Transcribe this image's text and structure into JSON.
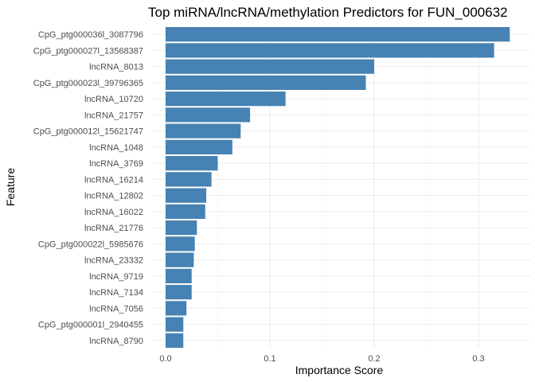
{
  "chart_data": {
    "type": "bar",
    "orientation": "horizontal",
    "title": "Top miRNA/lncRNA/methylation Predictors for FUN_000632",
    "xlabel": "Importance Score",
    "ylabel": "Feature",
    "xlim": [
      0,
      0.34
    ],
    "xticks": [
      0.0,
      0.1,
      0.2,
      0.3
    ],
    "xtick_labels": [
      "0.0",
      "0.1",
      "0.2",
      "0.3"
    ],
    "grid": true,
    "legend": "none",
    "bar_color": "#4682b4",
    "categories": [
      "CpG_ptg000036l_3087796",
      "CpG_ptg000027l_13568387",
      "lncRNA_8013",
      "CpG_ptg000023l_39796365",
      "lncRNA_10720",
      "lncRNA_21757",
      "CpG_ptg000012l_15621747",
      "lncRNA_1048",
      "lncRNA_3769",
      "lncRNA_16214",
      "lncRNA_12802",
      "lncRNA_16022",
      "lncRNA_21776",
      "CpG_ptg000022l_5985676",
      "lncRNA_23332",
      "lncRNA_9719",
      "lncRNA_7134",
      "lncRNA_7056",
      "CpG_ptg000001l_2940455",
      "lncRNA_8790"
    ],
    "values": [
      0.33,
      0.315,
      0.2,
      0.192,
      0.115,
      0.081,
      0.072,
      0.064,
      0.05,
      0.044,
      0.039,
      0.038,
      0.03,
      0.028,
      0.027,
      0.025,
      0.025,
      0.02,
      0.017,
      0.017
    ]
  }
}
